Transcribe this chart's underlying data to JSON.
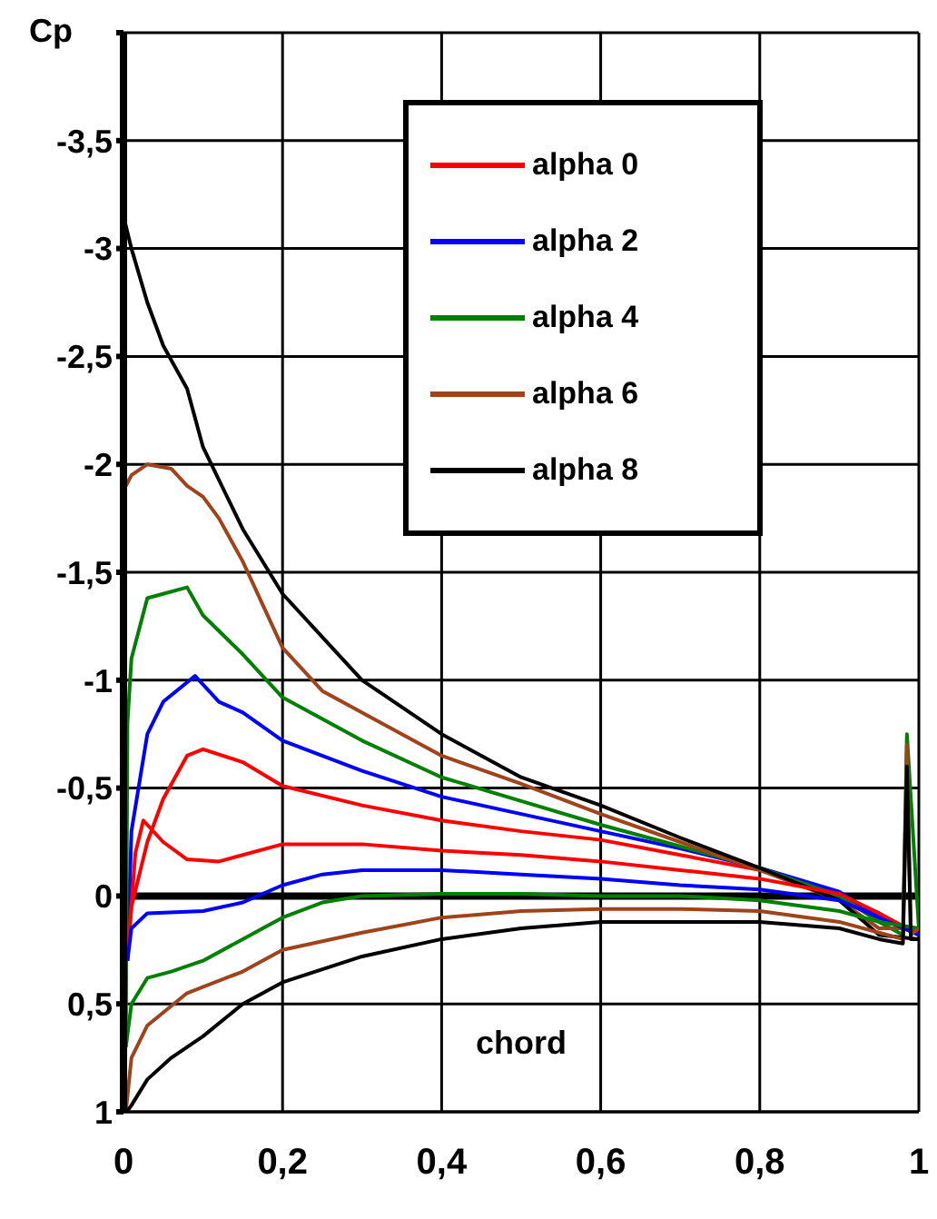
{
  "chart_data": {
    "type": "line",
    "xlabel": "chord",
    "ylabel": "Cp",
    "xlim": [
      0,
      1
    ],
    "xticks": [
      0,
      {
        "value": 0.2,
        "label": "0,2"
      },
      {
        "value": 0.4,
        "label": "0,4"
      },
      {
        "value": 0.6,
        "label": "0,6"
      },
      {
        "value": 0.8,
        "label": "0,8"
      },
      1
    ],
    "ylim": [
      1,
      -4
    ],
    "yticks": [
      {
        "value": -4,
        "label": null
      },
      {
        "value": -3.5,
        "label": "-3,5"
      },
      -3,
      {
        "value": -2.5,
        "label": "-2,5"
      },
      -2,
      {
        "value": -1.5,
        "label": "-1,5"
      },
      -1,
      {
        "value": -0.5,
        "label": "-0,5"
      },
      0,
      {
        "value": 0.5,
        "label": "0,5"
      },
      1
    ],
    "grid": true,
    "legend": "top right",
    "marker": "none",
    "line_style": "solid",
    "ref_lines": [
      {
        "axis": "y",
        "value": 0,
        "color": "#000000"
      }
    ],
    "series": [
      {
        "name": "alpha 0",
        "color": "#ff0000",
        "x": [
          0.005,
          0.01,
          0.03,
          0.05,
          0.08,
          0.1,
          0.15,
          0.2,
          0.3,
          0.4,
          0.5,
          0.6,
          0.7,
          0.8,
          0.9,
          0.95,
          1.0
        ],
        "values": [
          0.28,
          0.05,
          -0.25,
          -0.45,
          -0.65,
          -0.68,
          -0.62,
          -0.51,
          -0.42,
          -0.35,
          -0.3,
          -0.26,
          -0.19,
          -0.12,
          0.0,
          0.08,
          0.18
        ]
      },
      {
        "name": "alpha 2",
        "color": "#0000ff",
        "x": [
          0.005,
          0.01,
          0.03,
          0.05,
          0.09,
          0.12,
          0.15,
          0.2,
          0.3,
          0.4,
          0.5,
          0.6,
          0.7,
          0.8,
          0.9,
          0.95,
          1.0
        ],
        "values": [
          0.3,
          -0.3,
          -0.75,
          -0.9,
          -1.02,
          -0.9,
          -0.85,
          -0.72,
          -0.58,
          -0.46,
          -0.38,
          -0.3,
          -0.22,
          -0.13,
          -0.02,
          0.1,
          0.18
        ]
      },
      {
        "name": "alpha 4",
        "color": "#008000",
        "x": [
          0.003,
          0.005,
          0.01,
          0.03,
          0.05,
          0.08,
          0.1,
          0.15,
          0.2,
          0.25,
          0.3,
          0.4,
          0.5,
          0.6,
          0.7,
          0.8,
          0.9,
          0.95,
          0.98,
          0.985,
          1.0
        ],
        "values": [
          0.7,
          -0.8,
          -1.1,
          -1.38,
          -1.4,
          -1.43,
          -1.3,
          -1.12,
          -0.92,
          -0.82,
          -0.72,
          -0.55,
          -0.44,
          -0.33,
          -0.23,
          -0.13,
          0.0,
          0.12,
          0.18,
          -0.75,
          0.15
        ]
      },
      {
        "name": "alpha 6",
        "color": "#a0421a",
        "x": [
          0.003,
          0.01,
          0.03,
          0.06,
          0.08,
          0.1,
          0.12,
          0.15,
          0.2,
          0.25,
          0.3,
          0.4,
          0.5,
          0.6,
          0.7,
          0.8,
          0.9,
          0.95,
          1.0
        ],
        "values": [
          -1.9,
          -1.95,
          -2.0,
          -1.98,
          -1.9,
          -1.85,
          -1.75,
          -1.55,
          -1.15,
          -0.95,
          -0.85,
          -0.65,
          -0.52,
          -0.38,
          -0.25,
          -0.12,
          0.02,
          0.15,
          0.15
        ]
      },
      {
        "name": "alpha 8",
        "color": "#000000",
        "x": [
          0.0,
          0.01,
          0.03,
          0.05,
          0.08,
          0.1,
          0.15,
          0.2,
          0.25,
          0.3,
          0.4,
          0.5,
          0.6,
          0.7,
          0.8,
          0.9,
          0.95,
          1.0
        ],
        "values": [
          -3.15,
          -3.0,
          -2.75,
          -2.55,
          -2.35,
          -2.08,
          -1.7,
          -1.4,
          -1.2,
          -1.0,
          -0.75,
          -0.55,
          -0.42,
          -0.27,
          -0.13,
          0.02,
          0.18,
          0.2
        ]
      },
      {
        "color": "#ff0000",
        "x": [
          0.005,
          0.015,
          0.025,
          0.05,
          0.08,
          0.12,
          0.2,
          0.3,
          0.4,
          0.5,
          0.6,
          0.7,
          0.8,
          0.9,
          0.95,
          1.0
        ],
        "values": [
          0.28,
          -0.2,
          -0.35,
          -0.25,
          -0.17,
          -0.16,
          -0.24,
          -0.24,
          -0.21,
          -0.19,
          -0.16,
          -0.12,
          -0.08,
          -0.01,
          0.08,
          0.18
        ]
      },
      {
        "color": "#0000ff",
        "x": [
          0.005,
          0.01,
          0.03,
          0.1,
          0.15,
          0.2,
          0.25,
          0.3,
          0.4,
          0.5,
          0.6,
          0.7,
          0.8,
          0.9,
          0.95,
          1.0
        ],
        "values": [
          0.3,
          0.15,
          0.08,
          0.07,
          0.03,
          -0.05,
          -0.1,
          -0.12,
          -0.12,
          -0.1,
          -0.08,
          -0.05,
          -0.03,
          0.02,
          0.1,
          0.18
        ]
      },
      {
        "color": "#008000",
        "x": [
          0.003,
          0.01,
          0.03,
          0.06,
          0.1,
          0.15,
          0.2,
          0.25,
          0.3,
          0.4,
          0.5,
          0.6,
          0.7,
          0.8,
          0.9,
          0.95,
          1.0
        ],
        "values": [
          0.7,
          0.5,
          0.38,
          0.35,
          0.3,
          0.2,
          0.1,
          0.03,
          0.0,
          -0.01,
          -0.01,
          0.0,
          0.0,
          0.02,
          0.07,
          0.12,
          0.15
        ]
      },
      {
        "color": "#a0421a",
        "x": [
          0.003,
          0.01,
          0.03,
          0.08,
          0.15,
          0.2,
          0.3,
          0.4,
          0.5,
          0.6,
          0.7,
          0.8,
          0.9,
          0.95,
          0.98,
          0.985,
          0.99,
          1.0
        ],
        "values": [
          1.0,
          0.75,
          0.6,
          0.45,
          0.35,
          0.25,
          0.17,
          0.1,
          0.07,
          0.06,
          0.06,
          0.07,
          0.12,
          0.17,
          0.2,
          -0.7,
          0.18,
          0.15
        ]
      },
      {
        "color": "#000000",
        "x": [
          0.004,
          0.01,
          0.03,
          0.06,
          0.1,
          0.15,
          0.2,
          0.3,
          0.4,
          0.5,
          0.6,
          0.7,
          0.8,
          0.9,
          0.95,
          0.98,
          0.985,
          0.99,
          1.0
        ],
        "values": [
          1.0,
          0.97,
          0.85,
          0.75,
          0.65,
          0.5,
          0.4,
          0.28,
          0.2,
          0.15,
          0.12,
          0.12,
          0.12,
          0.15,
          0.2,
          0.22,
          -0.6,
          0.2,
          0.2
        ]
      }
    ]
  }
}
